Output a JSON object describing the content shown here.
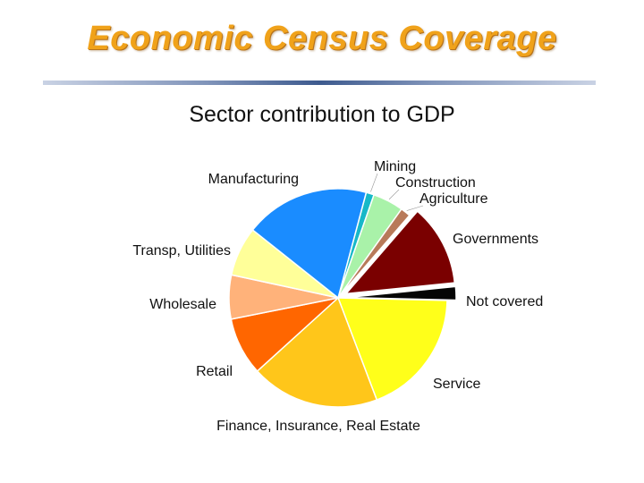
{
  "slide": {
    "title": "Economic Census Coverage"
  },
  "colors": {
    "title": "#f0a21a",
    "rule": "#3d5a8e"
  },
  "chart_data": {
    "type": "pie",
    "title": "Sector contribution to GDP",
    "slices": [
      {
        "label": "Mining",
        "value": 1.2,
        "color": "#17b8c8"
      },
      {
        "label": "Construction",
        "value": 4.6,
        "color": "#a9f2a9"
      },
      {
        "label": "Agriculture",
        "value": 1.5,
        "color": "#b87a5a"
      },
      {
        "label": "Governments",
        "value": 12.2,
        "color": "#7a0000"
      },
      {
        "label": "Not covered",
        "value": 2.0,
        "color": "#050505"
      },
      {
        "label": "Service",
        "value": 19.1,
        "color": "#ffff1a"
      },
      {
        "label": "Finance, Insurance, Real Estate",
        "value": 19.3,
        "color": "#ffc61a"
      },
      {
        "label": "Retail",
        "value": 8.7,
        "color": "#ff6600"
      },
      {
        "label": "Wholesale",
        "value": 6.6,
        "color": "#ffb27a"
      },
      {
        "label": "Transp, Utilities",
        "value": 7.4,
        "color": "#ffff99"
      },
      {
        "label": "Manufacturing",
        "value": 18.7,
        "color": "#1a8cff"
      }
    ],
    "exploded": [
      "Governments",
      "Not covered"
    ],
    "legend": "none"
  }
}
